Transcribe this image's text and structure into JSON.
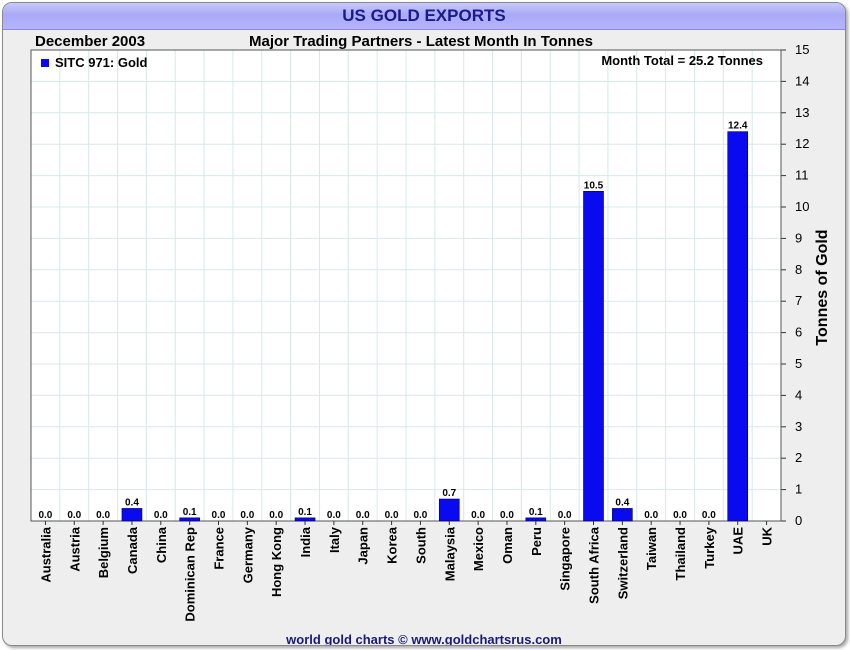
{
  "header": {
    "title": "US GOLD EXPORTS",
    "date": "December 2003",
    "subtitle": "Major Trading Partners - Latest Month In Tonnes"
  },
  "footer": {
    "credit": "world gold charts © www.goldchartsrus.com"
  },
  "colors": {
    "bar": "#0a0af0",
    "title_text": "#1a1a8a",
    "grid": "#d8e8e8",
    "panel": "#ffffff"
  },
  "chart_data": {
    "type": "bar",
    "categories": [
      "Australia",
      "Austria",
      "Belgium",
      "Canada",
      "China",
      "Dominican Rep",
      "France",
      "Germany",
      "Hong Kong",
      "India",
      "Italy",
      "Japan",
      "Korea",
      "South",
      "Malaysia",
      "Mexico",
      "Oman",
      "Peru",
      "Singapore",
      "South Africa",
      "Switzerland",
      "Taiwan",
      "Thailand",
      "Turkey",
      "UAE",
      "UK"
    ],
    "series": [
      {
        "name": "SITC 971: Gold",
        "values": [
          0.0,
          0.0,
          0.0,
          0.4,
          0.0,
          0.1,
          0.0,
          0.0,
          0.0,
          0.1,
          0.0,
          0.0,
          0.0,
          0.0,
          0.7,
          0.0,
          0.0,
          0.1,
          0.0,
          10.5,
          0.4,
          0.0,
          0.0,
          0.0,
          12.4,
          null
        ],
        "labels": [
          "0.0",
          "0.0",
          "0.0",
          "0.4",
          "0.0",
          "0.1",
          "0.0",
          "0.0",
          "0.0",
          "0.1",
          "0.0",
          "0.0",
          "0.0",
          "0.0",
          "0.7",
          "0.0",
          "0.0",
          "0.1",
          "0.0",
          "10.5",
          "0.4",
          "0.0",
          "0.0",
          "0.0",
          "12.4",
          ""
        ]
      }
    ],
    "ylabel": "Tonnes of Gold",
    "ylim": [
      0,
      15
    ],
    "yticks": [
      "0",
      "1",
      "2",
      "3",
      "4",
      "5",
      "6",
      "7",
      "8",
      "9",
      "10",
      "11",
      "12",
      "13",
      "14",
      "15"
    ],
    "annotation": "Month Total = 25.2 Tonnes",
    "legend_position": "top-left",
    "grid": true
  }
}
